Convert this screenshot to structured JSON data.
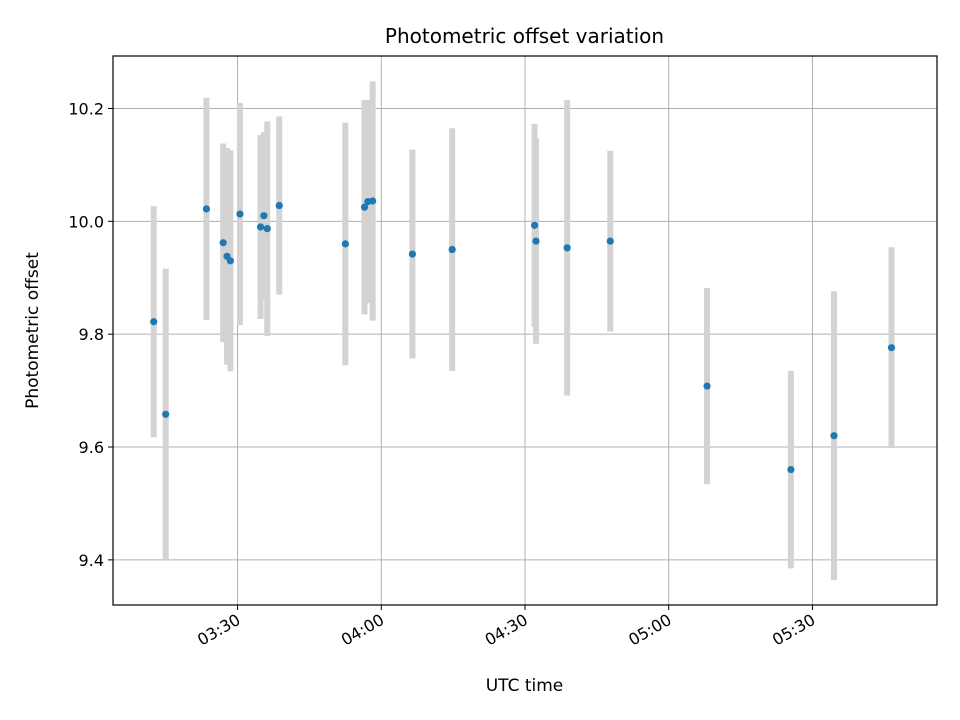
{
  "chart_data": {
    "type": "scatter",
    "title": "Photometric offset variation",
    "xlabel": "UTC time",
    "ylabel": "Photometric offset",
    "xlim": [
      "03:04",
      "05:56"
    ],
    "ylim": [
      9.32,
      10.293
    ],
    "grid": true,
    "legend": "none",
    "x_ticks": [
      "03:30",
      "04:00",
      "04:30",
      "05:00",
      "05:30"
    ],
    "y_ticks": [
      9.4,
      9.6,
      9.8,
      10.0,
      10.2
    ],
    "colors": {
      "point": "#1f77b4",
      "errorbar": "#d3d3d3"
    },
    "points": [
      {
        "t": "03:12.5",
        "y": 9.822,
        "err": 0.205
      },
      {
        "t": "03:15.0",
        "y": 9.658,
        "err": 0.258
      },
      {
        "t": "03:23.5",
        "y": 10.022,
        "err": 0.197
      },
      {
        "t": "03:27.0",
        "y": 9.962,
        "err": 0.176
      },
      {
        "t": "03:27.8",
        "y": 9.938,
        "err": 0.192
      },
      {
        "t": "03:28.5",
        "y": 9.93,
        "err": 0.196
      },
      {
        "t": "03:30.5",
        "y": 10.013,
        "err": 0.197
      },
      {
        "t": "03:34.8",
        "y": 9.99,
        "err": 0.163
      },
      {
        "t": "03:35.5",
        "y": 10.01,
        "err": 0.148
      },
      {
        "t": "03:36.2",
        "y": 9.987,
        "err": 0.19
      },
      {
        "t": "03:38.7",
        "y": 10.028,
        "err": 0.158
      },
      {
        "t": "03:52.5",
        "y": 9.96,
        "err": 0.215
      },
      {
        "t": "03:56.5",
        "y": 10.025,
        "err": 0.19
      },
      {
        "t": "03:57.2",
        "y": 10.035,
        "err": 0.18
      },
      {
        "t": "03:58.2",
        "y": 10.036,
        "err": 0.212
      },
      {
        "t": "04:06.5",
        "y": 9.942,
        "err": 0.185
      },
      {
        "t": "04:14.8",
        "y": 9.95,
        "err": 0.215
      },
      {
        "t": "04:32.0",
        "y": 9.993,
        "err": 0.18
      },
      {
        "t": "04:32.3",
        "y": 9.965,
        "err": 0.182
      },
      {
        "t": "04:38.8",
        "y": 9.953,
        "err": 0.262
      },
      {
        "t": "04:47.8",
        "y": 9.965,
        "err": 0.16
      },
      {
        "t": "05:08.0",
        "y": 9.708,
        "err": 0.174
      },
      {
        "t": "05:25.5",
        "y": 9.56,
        "err": 0.175
      },
      {
        "t": "05:34.5",
        "y": 9.62,
        "err": 0.256
      },
      {
        "t": "05:46.5",
        "y": 9.776,
        "err": 0.178
      }
    ]
  }
}
